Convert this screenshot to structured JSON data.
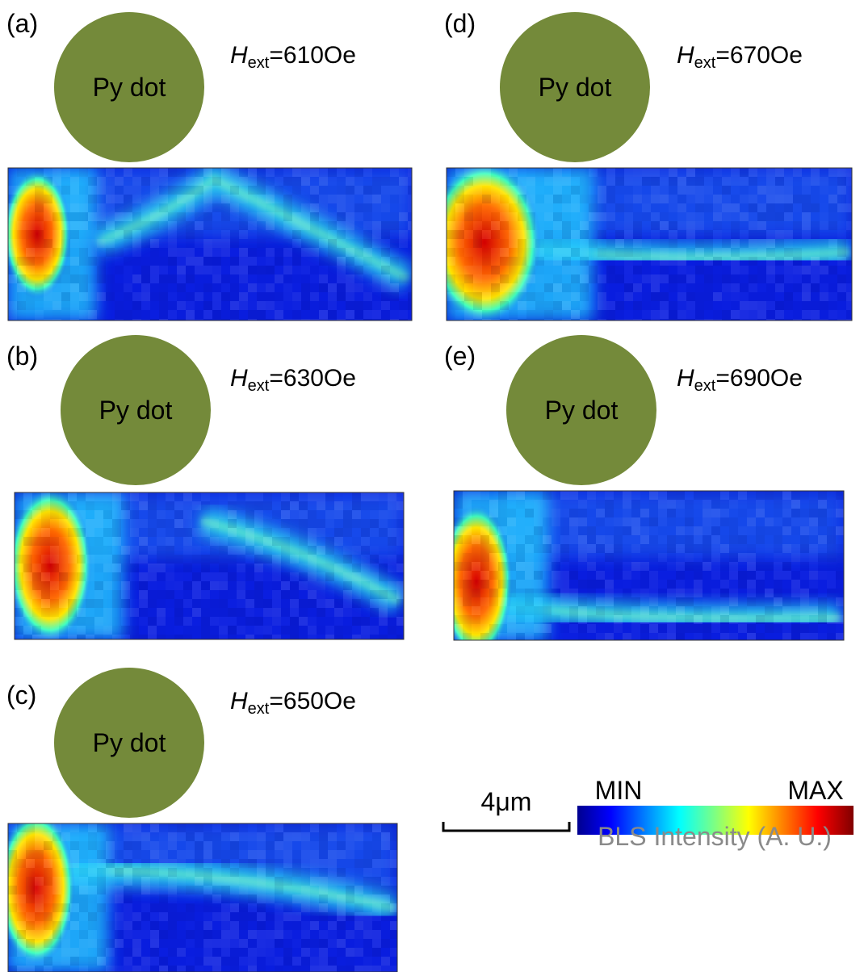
{
  "panels": [
    {
      "label": "(a)",
      "dot": "Py dot",
      "field": {
        "symbol": "H",
        "subscript": "ext",
        "value": "=610Oe"
      }
    },
    {
      "label": "(b)",
      "dot": "Py dot",
      "field": {
        "symbol": "H",
        "subscript": "ext",
        "value": "=630Oe"
      }
    },
    {
      "label": "(c)",
      "dot": "Py dot",
      "field": {
        "symbol": "H",
        "subscript": "ext",
        "value": "=650Oe"
      }
    },
    {
      "label": "(d)",
      "dot": "Py dot",
      "field": {
        "symbol": "H",
        "subscript": "ext",
        "value": "=670Oe"
      }
    },
    {
      "label": "(e)",
      "dot": "Py dot",
      "field": {
        "symbol": "H",
        "subscript": "ext",
        "value": "=690Oe"
      }
    }
  ],
  "scale_bar": "4μm",
  "colorbar": {
    "min": "MIN",
    "max": "MAX",
    "title": "BLS Intensity (A. U.)"
  }
}
